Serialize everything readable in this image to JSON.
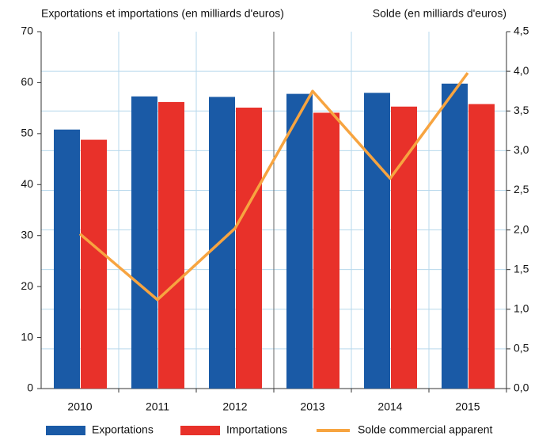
{
  "chart_data": {
    "type": "bar-line",
    "y_label": "Exportations et importations (en milliards d'euros)",
    "y2_label": "Solde (en milliards d'euros)",
    "categories": [
      "2010",
      "2011",
      "2012",
      "2013",
      "2014",
      "2015"
    ],
    "series": [
      {
        "name": "Exportations",
        "color": "#1a5aa6",
        "type": "bar",
        "values": [
          50.8,
          57.3,
          57.2,
          57.8,
          58.0,
          59.8
        ]
      },
      {
        "name": "Importations",
        "color": "#e8312a",
        "type": "bar",
        "values": [
          48.8,
          56.2,
          55.1,
          54.1,
          55.3,
          55.8
        ]
      },
      {
        "name": "Solde commercial apparent",
        "color": "#f7a440",
        "type": "line",
        "axis": "y2",
        "values": [
          1.95,
          1.12,
          2.02,
          3.75,
          2.65,
          3.98
        ]
      }
    ],
    "ylim": [
      0,
      70
    ],
    "yticks": [
      0,
      10,
      20,
      30,
      40,
      50,
      60,
      70
    ],
    "y2lim": [
      0,
      4.5
    ],
    "y2ticks": [
      {
        "value": 0,
        "label": "0,0"
      },
      {
        "value": 0.5,
        "label": "0,5"
      },
      {
        "value": 1,
        "label": "1,0"
      },
      {
        "value": 1.5,
        "label": "1,5"
      },
      {
        "value": 2,
        "label": "2,0"
      },
      {
        "value": 2.5,
        "label": "2,5"
      },
      {
        "value": 3,
        "label": "3,0"
      },
      {
        "value": 3.5,
        "label": "3,5"
      },
      {
        "value": 4,
        "label": "4,0"
      },
      {
        "value": 4.5,
        "label": "4,5"
      }
    ],
    "grid": true
  }
}
